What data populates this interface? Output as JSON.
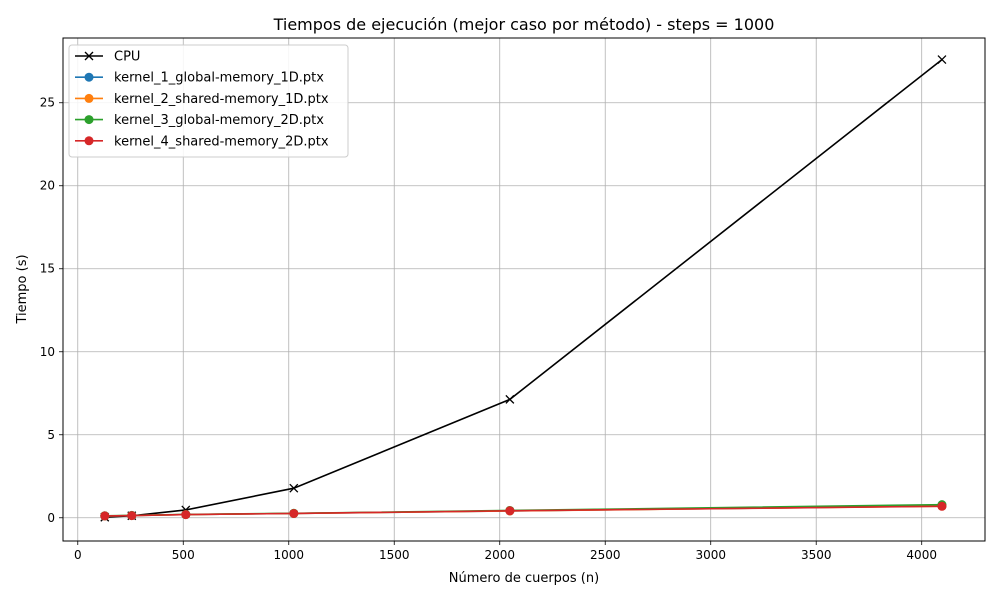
{
  "chart_data": {
    "type": "line",
    "title": "Tiempos de ejecución (mejor caso por método) - steps = 1000",
    "xlabel": "Número de cuerpos (n)",
    "ylabel": "Tiempo (s)",
    "xlim": [
      -70,
      4300
    ],
    "ylim": [
      -1.4,
      28.9
    ],
    "xticks": [
      0,
      500,
      1000,
      1500,
      2000,
      2500,
      3000,
      3500,
      4000
    ],
    "yticks": [
      0,
      5,
      10,
      15,
      20,
      25
    ],
    "grid": true,
    "legend_position": "top-left",
    "x": [
      128,
      256,
      512,
      1024,
      2048,
      4096
    ],
    "series": [
      {
        "name": "CPU",
        "color": "#000000",
        "marker": "x",
        "values": [
          0.03,
          0.12,
          0.47,
          1.78,
          7.13,
          27.6
        ]
      },
      {
        "name": "kernel_1_global-memory_1D.ptx",
        "color": "#1f77b4",
        "marker": "o",
        "values": [
          0.11,
          0.13,
          0.19,
          0.26,
          0.41,
          0.71
        ]
      },
      {
        "name": "kernel_2_shared-memory_1D.ptx",
        "color": "#ff7f0e",
        "marker": "o",
        "values": [
          0.11,
          0.13,
          0.19,
          0.26,
          0.41,
          0.7
        ]
      },
      {
        "name": "kernel_3_global-memory_2D.ptx",
        "color": "#2ca02c",
        "marker": "o",
        "values": [
          0.12,
          0.14,
          0.2,
          0.27,
          0.44,
          0.79
        ]
      },
      {
        "name": "kernel_4_shared-memory_2D.ptx",
        "color": "#d62728",
        "marker": "o",
        "values": [
          0.11,
          0.13,
          0.19,
          0.26,
          0.42,
          0.69
        ]
      }
    ]
  }
}
